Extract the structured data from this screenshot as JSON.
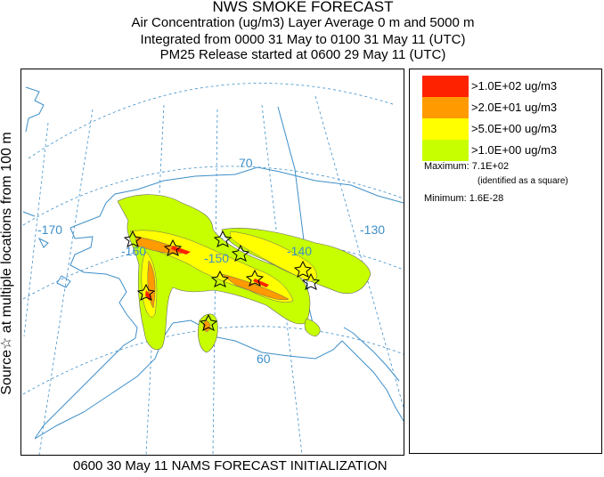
{
  "header": {
    "line1": "NWS SMOKE FORECAST",
    "line2": "Air Concentration (ug/m3) Layer Average     0 m and  5000 m",
    "line3": "Integrated from 0000 31 May to 0100 31 May 11 (UTC)",
    "line4": "PM25 Release started at 0600 29 May 11 (UTC)"
  },
  "side_label": "Source☆ at multiple locations  from   100 m",
  "footer": "0600 30 May 11 NAMS FORECAST INITIALIZATION",
  "legend": {
    "items": [
      {
        "label": ">1.0E+02 ug/m3",
        "color": "#ff2200"
      },
      {
        "label": ">2.0E+01 ug/m3",
        "color": "#ff9a00"
      },
      {
        "label": ">5.0E+00 ug/m3",
        "color": "#ffff00"
      },
      {
        "label": ">1.0E+00 ug/m3",
        "color": "#c8ff00"
      }
    ],
    "maximum": "Maximum: 7.1E+02",
    "maximum_note": "(identified as a square)",
    "minimum": "Minimum: 1.6E-28"
  },
  "map": {
    "grid_color": "#3e8fc8",
    "grid_labels": [
      "-170",
      "-160",
      "-150",
      "-140",
      "-130",
      "70",
      "60"
    ]
  }
}
